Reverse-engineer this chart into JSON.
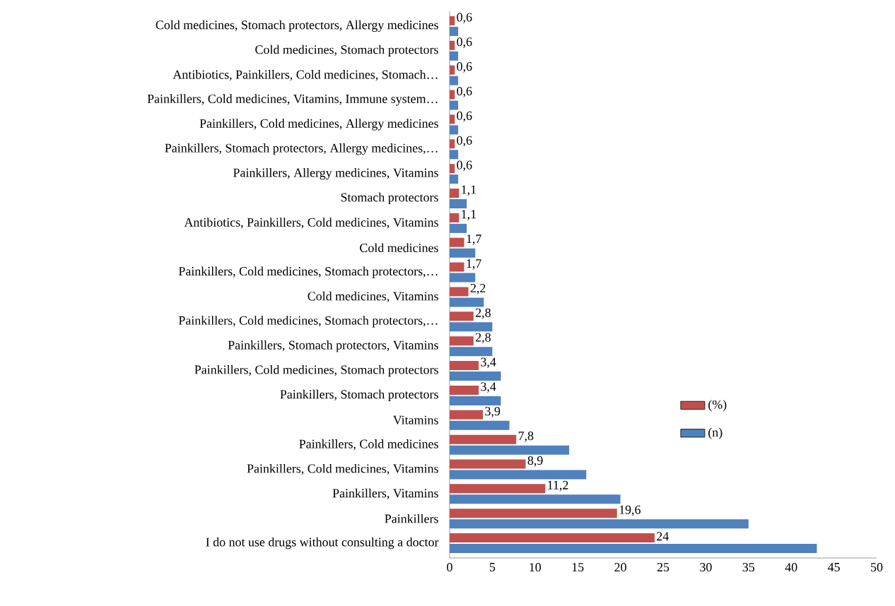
{
  "chart_data": {
    "type": "bar",
    "orientation": "horizontal",
    "categories": [
      "Cold medicines, Stomach protectors, Allergy medicines",
      "Cold medicines, Stomach protectors",
      "Antibiotics, Painkillers, Cold medicines, Stomach…",
      "Painkillers, Cold medicines, Vitamins, Immune system…",
      "Painkillers, Cold medicines, Allergy medicines",
      "Painkillers, Stomach protectors, Allergy medicines,…",
      "Painkillers, Allergy medicines, Vitamins",
      "Stomach protectors",
      "Antibiotics, Painkillers, Cold medicines, Vitamins",
      "Cold medicines",
      "Painkillers, Cold medicines, Stomach protectors,…",
      "Cold medicines, Vitamins",
      "Painkillers, Cold medicines, Stomach protectors,…",
      "Painkillers, Stomach protectors, Vitamins",
      "Painkillers, Cold medicines, Stomach protectors",
      "Painkillers, Stomach protectors",
      "Vitamins",
      "Painkillers, Cold medicines",
      "Painkillers, Cold medicines, Vitamins",
      "Painkillers, Vitamins",
      "Painkillers",
      "I do not use drugs without consulting a doctor"
    ],
    "series": [
      {
        "name": "(%)",
        "color": "#c0504d",
        "values": [
          0.6,
          0.6,
          0.6,
          0.6,
          0.6,
          0.6,
          0.6,
          1.1,
          1.1,
          1.7,
          1.7,
          2.2,
          2.8,
          2.8,
          3.4,
          3.4,
          3.9,
          7.8,
          8.9,
          11.2,
          19.6,
          24
        ],
        "value_labels": [
          "0,6",
          "0,6",
          "0,6",
          "0,6",
          "0,6",
          "0,6",
          "0,6",
          "1,1",
          "1,1",
          "1,7",
          "1,7",
          "2,2",
          "2,8",
          "2,8",
          "3,4",
          "3,4",
          "3,9",
          "7,8",
          "8,9",
          "11,2",
          "19,6",
          "24"
        ]
      },
      {
        "name": "(n)",
        "color": "#4f81bd",
        "values": [
          1,
          1,
          1,
          1,
          1,
          1,
          1,
          2,
          2,
          3,
          3,
          4,
          5,
          5,
          6,
          6,
          7,
          14,
          16,
          20,
          35,
          43
        ]
      }
    ],
    "xlim": [
      0,
      50
    ],
    "xticks": [
      0,
      5,
      10,
      15,
      20,
      25,
      30,
      35,
      40,
      45,
      50
    ],
    "legend": "bottom right"
  }
}
